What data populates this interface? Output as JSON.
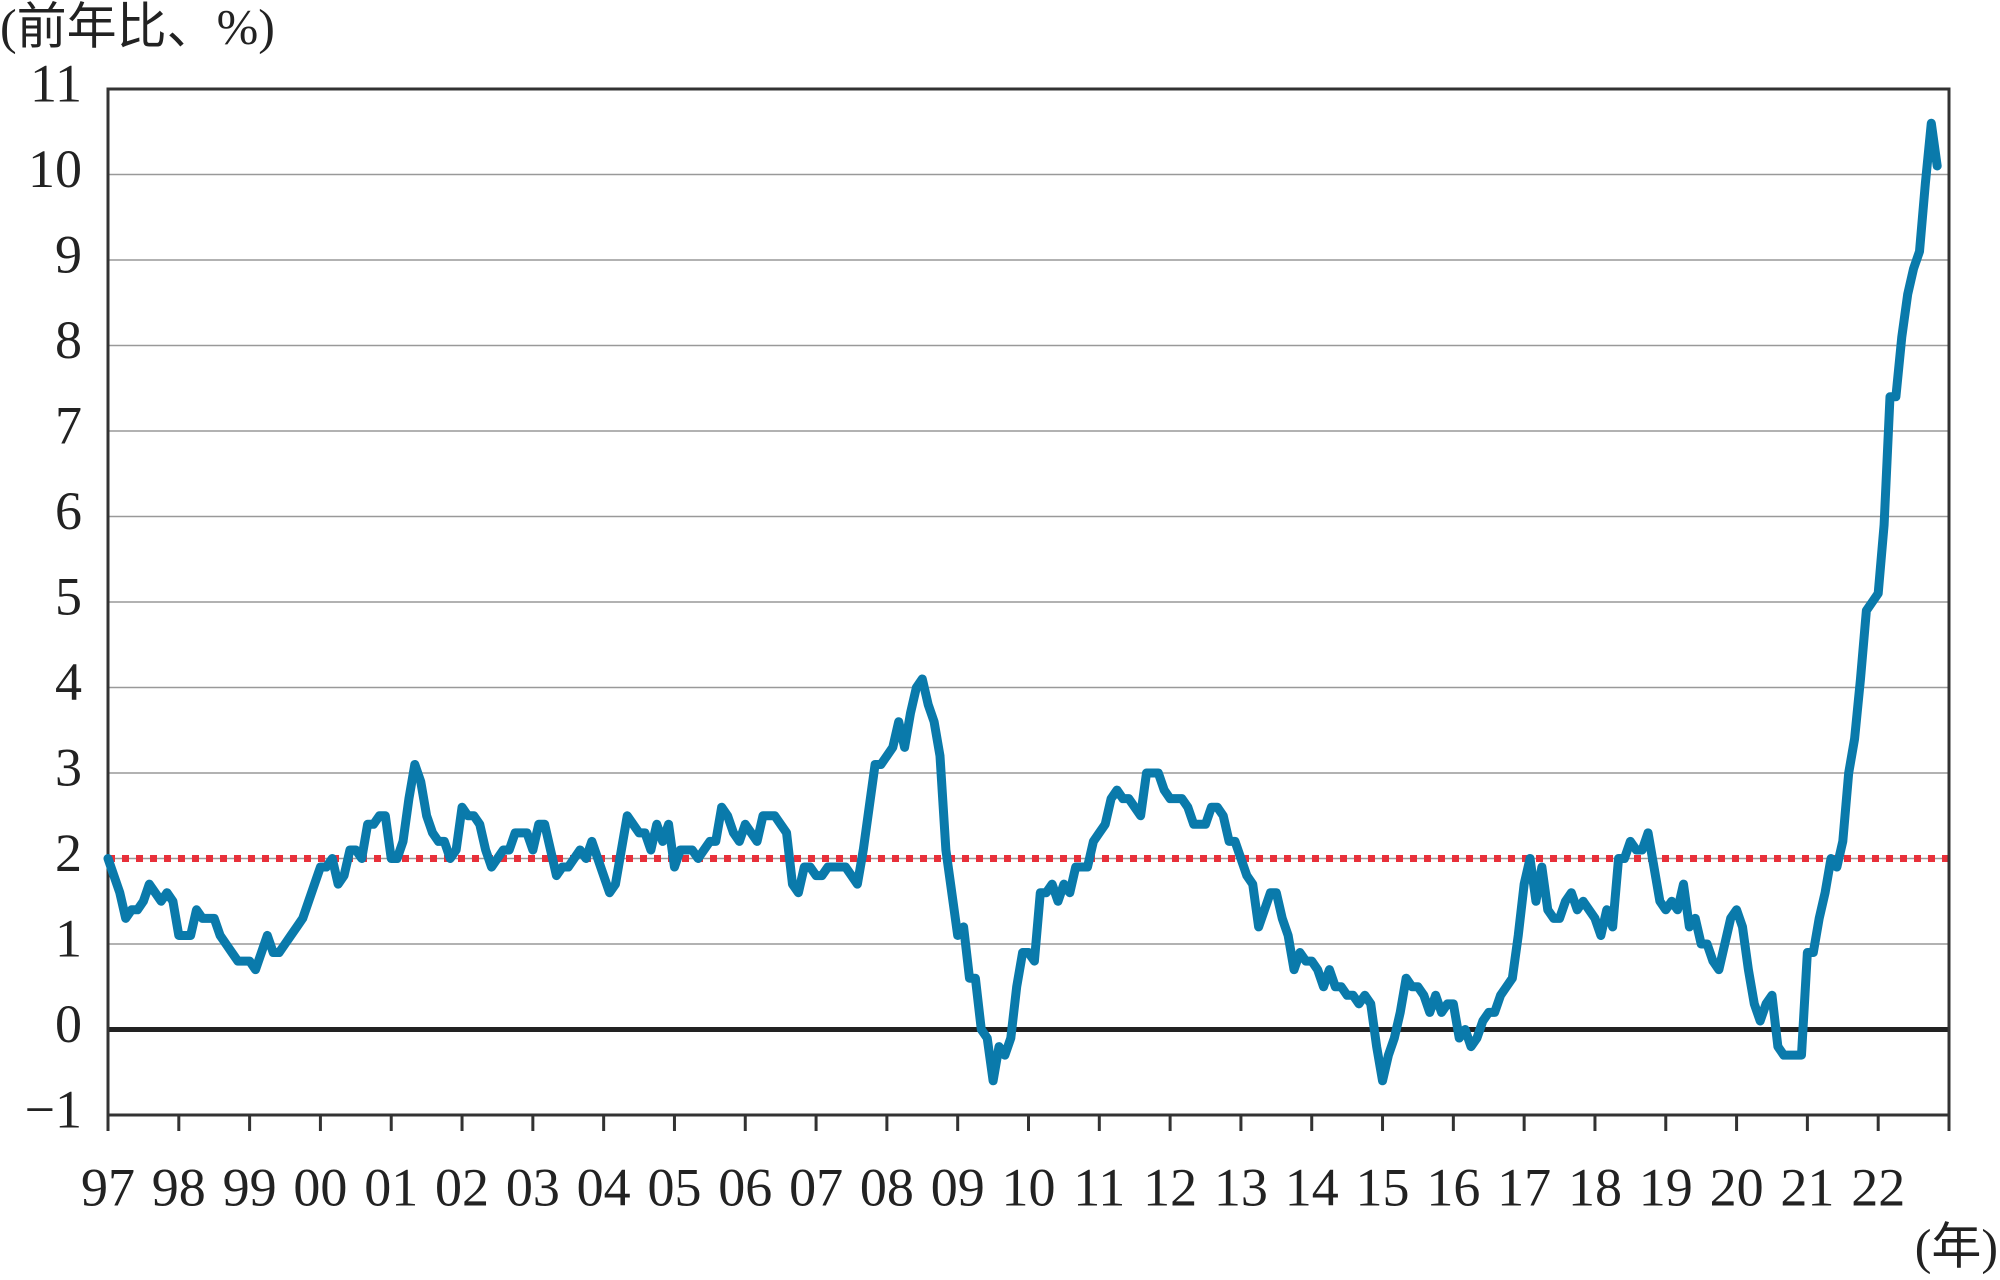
{
  "chart_data": {
    "type": "line",
    "title": "(前年比、%)",
    "x_label": "(年)",
    "categories": [
      "97",
      null,
      null,
      null,
      null,
      null,
      null,
      null,
      null,
      null,
      null,
      null,
      "98",
      null,
      null,
      null,
      null,
      null,
      null,
      null,
      null,
      null,
      null,
      null,
      "99",
      null,
      null,
      null,
      null,
      null,
      null,
      null,
      null,
      null,
      null,
      null,
      "00",
      null,
      null,
      null,
      null,
      null,
      null,
      null,
      null,
      null,
      null,
      null,
      "01",
      null,
      null,
      null,
      null,
      null,
      null,
      null,
      null,
      null,
      null,
      null,
      "02",
      null,
      null,
      null,
      null,
      null,
      null,
      null,
      null,
      null,
      null,
      null,
      "03",
      null,
      null,
      null,
      null,
      null,
      null,
      null,
      null,
      null,
      null,
      null,
      "04",
      null,
      null,
      null,
      null,
      null,
      null,
      null,
      null,
      null,
      null,
      null,
      "05",
      null,
      null,
      null,
      null,
      null,
      null,
      null,
      null,
      null,
      null,
      null,
      "06",
      null,
      null,
      null,
      null,
      null,
      null,
      null,
      null,
      null,
      null,
      null,
      "07",
      null,
      null,
      null,
      null,
      null,
      null,
      null,
      null,
      null,
      null,
      null,
      "08",
      null,
      null,
      null,
      null,
      null,
      null,
      null,
      null,
      null,
      null,
      null,
      "09",
      null,
      null,
      null,
      null,
      null,
      null,
      null,
      null,
      null,
      null,
      null,
      "10",
      null,
      null,
      null,
      null,
      null,
      null,
      null,
      null,
      null,
      null,
      null,
      "11",
      null,
      null,
      null,
      null,
      null,
      null,
      null,
      null,
      null,
      null,
      null,
      "12",
      null,
      null,
      null,
      null,
      null,
      null,
      null,
      null,
      null,
      null,
      null,
      "13",
      null,
      null,
      null,
      null,
      null,
      null,
      null,
      null,
      null,
      null,
      null,
      "14",
      null,
      null,
      null,
      null,
      null,
      null,
      null,
      null,
      null,
      null,
      null,
      "15",
      null,
      null,
      null,
      null,
      null,
      null,
      null,
      null,
      null,
      null,
      null,
      "16",
      null,
      null,
      null,
      null,
      null,
      null,
      null,
      null,
      null,
      null,
      null,
      "17",
      null,
      null,
      null,
      null,
      null,
      null,
      null,
      null,
      null,
      null,
      null,
      "18",
      null,
      null,
      null,
      null,
      null,
      null,
      null,
      null,
      null,
      null,
      null,
      "19",
      null,
      null,
      null,
      null,
      null,
      null,
      null,
      null,
      null,
      null,
      null,
      "20",
      null,
      null,
      null,
      null,
      null,
      null,
      null,
      null,
      null,
      null,
      null,
      "21",
      null,
      null,
      null,
      null,
      null,
      null,
      null,
      null,
      null,
      null,
      null,
      "22",
      null,
      null,
      null,
      null,
      null,
      null,
      null,
      null,
      null,
      null
    ],
    "series": [
      {
        "color": "#0a7aab",
        "values": [
          2.0,
          1.8,
          1.6,
          1.3,
          1.4,
          1.4,
          1.5,
          1.7,
          1.6,
          1.5,
          1.6,
          1.5,
          1.1,
          1.1,
          1.1,
          1.4,
          1.3,
          1.3,
          1.3,
          1.1,
          1.0,
          0.9,
          0.8,
          0.8,
          0.8,
          0.7,
          0.9,
          1.1,
          0.9,
          0.9,
          1.0,
          1.1,
          1.2,
          1.3,
          1.5,
          1.7,
          1.9,
          1.9,
          2.0,
          1.7,
          1.8,
          2.1,
          2.1,
          2.0,
          2.4,
          2.4,
          2.5,
          2.5,
          2.0,
          2.0,
          2.2,
          2.7,
          3.1,
          2.9,
          2.5,
          2.3,
          2.2,
          2.2,
          2.0,
          2.1,
          2.6,
          2.5,
          2.5,
          2.4,
          2.1,
          1.9,
          2.0,
          2.1,
          2.1,
          2.3,
          2.3,
          2.3,
          2.1,
          2.4,
          2.4,
          2.1,
          1.8,
          1.9,
          1.9,
          2.0,
          2.1,
          2.0,
          2.2,
          2.0,
          1.8,
          1.6,
          1.7,
          2.1,
          2.5,
          2.4,
          2.3,
          2.3,
          2.1,
          2.4,
          2.2,
          2.4,
          1.9,
          2.1,
          2.1,
          2.1,
          2.0,
          2.1,
          2.2,
          2.2,
          2.6,
          2.5,
          2.3,
          2.2,
          2.4,
          2.3,
          2.2,
          2.5,
          2.5,
          2.5,
          2.4,
          2.3,
          1.7,
          1.6,
          1.9,
          1.9,
          1.8,
          1.8,
          1.9,
          1.9,
          1.9,
          1.9,
          1.8,
          1.7,
          2.1,
          2.6,
          3.1,
          3.1,
          3.2,
          3.3,
          3.6,
          3.3,
          3.7,
          4.0,
          4.1,
          3.8,
          3.6,
          3.2,
          2.1,
          1.6,
          1.1,
          1.2,
          0.6,
          0.6,
          0.0,
          -0.1,
          -0.6,
          -0.2,
          -0.3,
          -0.1,
          0.5,
          0.9,
          0.9,
          0.8,
          1.6,
          1.6,
          1.7,
          1.5,
          1.7,
          1.6,
          1.9,
          1.9,
          1.9,
          2.2,
          2.3,
          2.4,
          2.7,
          2.8,
          2.7,
          2.7,
          2.6,
          2.5,
          3.0,
          3.0,
          3.0,
          2.8,
          2.7,
          2.7,
          2.7,
          2.6,
          2.4,
          2.4,
          2.4,
          2.6,
          2.6,
          2.5,
          2.2,
          2.2,
          2.0,
          1.8,
          1.7,
          1.2,
          1.4,
          1.6,
          1.6,
          1.3,
          1.1,
          0.7,
          0.9,
          0.8,
          0.8,
          0.7,
          0.5,
          0.7,
          0.5,
          0.5,
          0.4,
          0.4,
          0.3,
          0.4,
          0.3,
          -0.2,
          -0.6,
          -0.3,
          -0.1,
          0.2,
          0.6,
          0.5,
          0.5,
          0.4,
          0.2,
          0.4,
          0.2,
          0.3,
          0.3,
          -0.1,
          0.0,
          -0.2,
          -0.1,
          0.1,
          0.2,
          0.2,
          0.4,
          0.5,
          0.6,
          1.1,
          1.7,
          2.0,
          1.5,
          1.9,
          1.4,
          1.3,
          1.3,
          1.5,
          1.6,
          1.4,
          1.5,
          1.4,
          1.3,
          1.1,
          1.4,
          1.2,
          2.0,
          2.0,
          2.2,
          2.1,
          2.1,
          2.3,
          1.9,
          1.5,
          1.4,
          1.5,
          1.4,
          1.7,
          1.2,
          1.3,
          1.0,
          1.0,
          0.8,
          0.7,
          1.0,
          1.3,
          1.4,
          1.2,
          0.7,
          0.3,
          0.1,
          0.3,
          0.4,
          -0.2,
          -0.3,
          -0.3,
          -0.3,
          -0.3,
          0.9,
          0.9,
          1.3,
          1.6,
          2.0,
          1.9,
          2.2,
          3.0,
          3.4,
          4.1,
          4.9,
          5.0,
          5.1,
          5.9,
          7.4,
          7.4,
          8.1,
          8.6,
          8.9,
          9.1,
          9.9,
          10.6,
          10.1
        ]
      }
    ],
    "ylim": [
      -1,
      11
    ],
    "yticks": [
      {
        "value": -1,
        "label": "−1"
      },
      0,
      1,
      2,
      3,
      4,
      5,
      6,
      7,
      8,
      9,
      10,
      11
    ],
    "grid": true,
    "reference_line": {
      "value": 2,
      "color": "#e8303a"
    }
  }
}
